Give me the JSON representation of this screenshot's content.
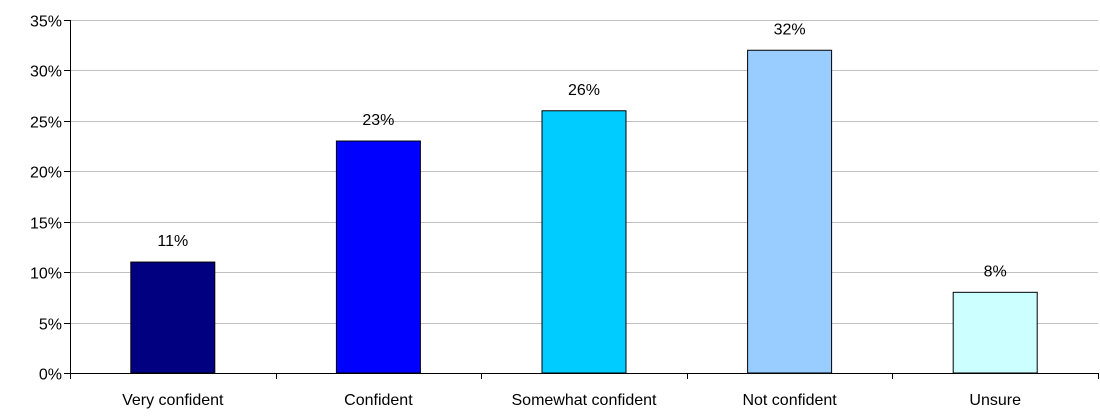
{
  "chart_data": {
    "type": "bar",
    "categories": [
      "Very confident",
      "Confident",
      "Somewhat confident",
      "Not confident",
      "Unsure"
    ],
    "values": [
      11,
      23,
      26,
      32,
      8
    ],
    "data_labels": [
      "11%",
      "23%",
      "26%",
      "32%",
      "8%"
    ],
    "bar_colors": [
      "#000080",
      "#0000FF",
      "#00CCFF",
      "#99CCFF",
      "#CCFFFF"
    ],
    "y_ticks": [
      0,
      5,
      10,
      15,
      20,
      25,
      30,
      35
    ],
    "y_tick_labels": [
      "0%",
      "5%",
      "10%",
      "15%",
      "20%",
      "25%",
      "30%",
      "35%"
    ],
    "ylim": [
      0,
      35
    ],
    "grid": true,
    "legend": "none"
  }
}
